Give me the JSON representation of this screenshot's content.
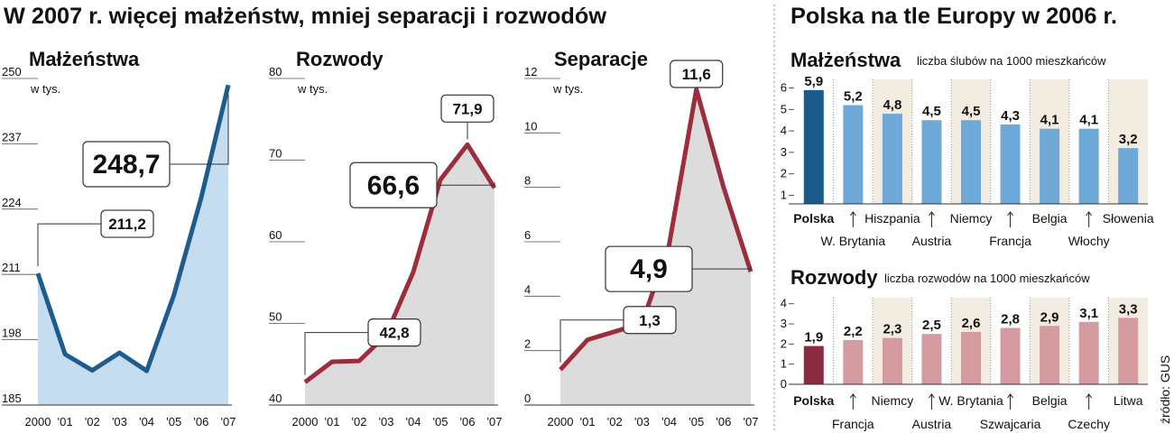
{
  "title": "W 2007 r. więcej małżeństw, mniej separacji i rozwodów",
  "right_title": "Polska na tle Europy w 2006 r.",
  "source": "źródło: GUS",
  "chart_data": [
    {
      "type": "line",
      "title": "Małżeństwa",
      "unit": "w tys.",
      "title_color": "#1d5c8e",
      "color": "#1d5c8e",
      "fill": "#c6dcef",
      "categories": [
        "2000",
        "'01",
        "'02",
        "'03",
        "'04",
        "'05",
        "'06",
        "'07"
      ],
      "values": [
        211.2,
        195.1,
        191.9,
        195.4,
        191.8,
        206.9,
        226.2,
        248.7
      ],
      "value_labels": [
        "211,2",
        null,
        null,
        null,
        null,
        null,
        null,
        "248,7"
      ],
      "ylim": [
        185,
        250
      ],
      "yticks": [
        185,
        198,
        211,
        224,
        237,
        250
      ]
    },
    {
      "type": "line",
      "title": "Rozwody",
      "unit": "w tys.",
      "title_color": "#8b2b3f",
      "color": "#9b2d3c",
      "fill": "#dcdcdc",
      "categories": [
        "2000",
        "'01",
        "'02",
        "'03",
        "'04",
        "'05",
        "'06",
        "'07"
      ],
      "values": [
        42.8,
        45.3,
        45.4,
        48.6,
        56.3,
        67.6,
        71.9,
        66.6
      ],
      "value_labels": [
        "42,8",
        null,
        null,
        null,
        null,
        null,
        "71,9",
        "66,6"
      ],
      "ylim": [
        40,
        80
      ],
      "yticks": [
        40,
        50,
        60,
        70,
        80
      ]
    },
    {
      "type": "line",
      "title": "Separacje",
      "unit": "w tys.",
      "title_color": "#8b2b3f",
      "color": "#9b2d3c",
      "fill": "#dcdcdc",
      "categories": [
        "2000",
        "'01",
        "'02",
        "'03",
        "'04",
        "'05",
        "'06",
        "'07"
      ],
      "values": [
        1.3,
        2.4,
        2.7,
        3.0,
        5.9,
        11.6,
        8.0,
        4.9
      ],
      "value_labels": [
        "1,3",
        null,
        null,
        null,
        null,
        "11,6",
        null,
        "4,9"
      ],
      "ylim": [
        0,
        12
      ],
      "yticks": [
        0,
        2,
        4,
        6,
        8,
        10,
        12
      ]
    },
    {
      "type": "bar",
      "title": "Małżeństwa",
      "subtitle": "liczba ślubów na 1000 mieszkańców",
      "title_color": "#1d5c8e",
      "categories": [
        "Polska",
        "W. Brytania",
        "Hiszpania",
        "Austria",
        "Niemcy",
        "Francja",
        "Belgia",
        "Włochy",
        "Słowenia"
      ],
      "values": [
        5.9,
        5.2,
        4.8,
        4.5,
        4.5,
        4.3,
        4.1,
        4.1,
        3.2
      ],
      "value_labels": [
        "5,9",
        "5,2",
        "4,8",
        "4,5",
        "4,5",
        "4,3",
        "4,1",
        "4,1",
        "3,2"
      ],
      "colors": [
        "#1a5a8c",
        "#6fa9d8",
        "#6fa9d8",
        "#6fa9d8",
        "#6fa9d8",
        "#6fa9d8",
        "#6fa9d8",
        "#6fa9d8",
        "#6fa9d8"
      ],
      "ylim": [
        0.6,
        6.4
      ],
      "yticks": [
        1,
        2,
        3,
        4,
        5,
        6
      ]
    },
    {
      "type": "bar",
      "title": "Rozwody",
      "subtitle": "liczba rozwodów  na 1000 mieszkańców",
      "title_color": "#8b2b3f",
      "categories": [
        "Polska",
        "Francja",
        "Niemcy",
        "Austria",
        "W. Brytania",
        "Szwajcaria",
        "Belgia",
        "Czechy",
        "Litwa"
      ],
      "values": [
        1.9,
        2.2,
        2.3,
        2.5,
        2.6,
        2.8,
        2.9,
        3.1,
        3.3
      ],
      "value_labels": [
        "1,9",
        "2,2",
        "2,3",
        "2,5",
        "2,6",
        "2,8",
        "2,9",
        "3,1",
        "3,3"
      ],
      "colors": [
        "#8b2b3f",
        "#d49ba0",
        "#d49ba0",
        "#d49ba0",
        "#d49ba0",
        "#d49ba0",
        "#d49ba0",
        "#d49ba0",
        "#d49ba0"
      ],
      "ylim": [
        0,
        4.3
      ],
      "yticks": [
        0,
        1,
        2,
        3,
        4
      ]
    }
  ]
}
